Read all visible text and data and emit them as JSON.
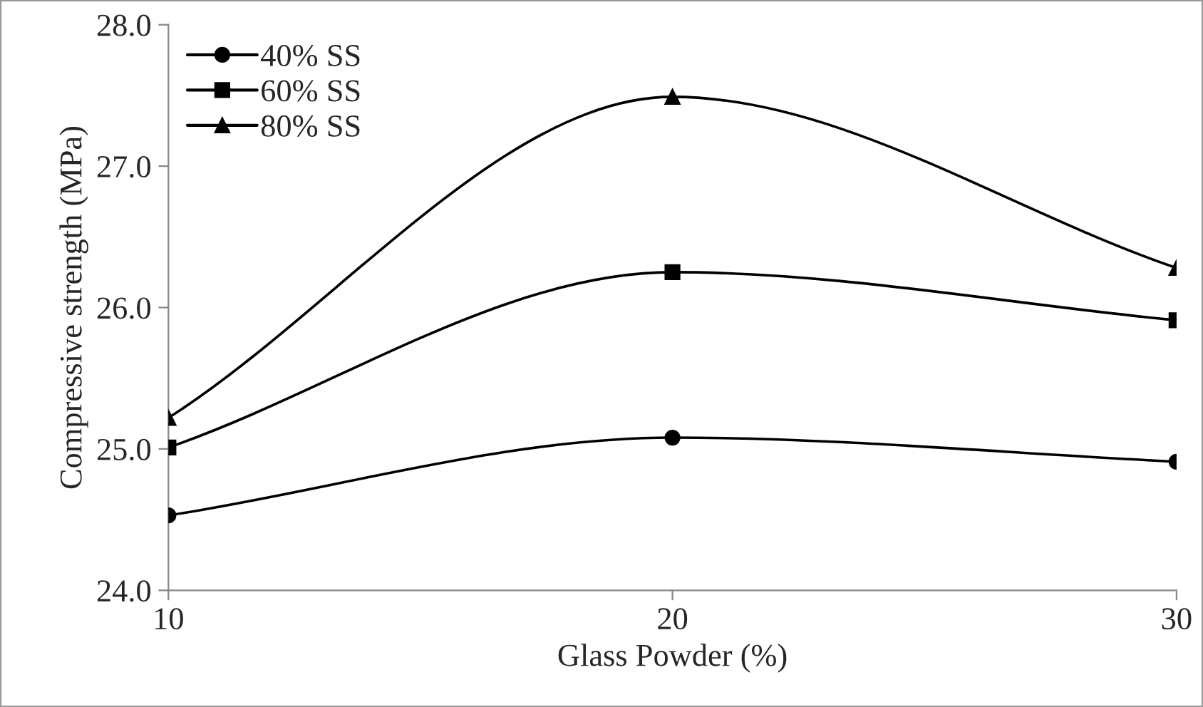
{
  "chart_data": {
    "type": "line",
    "xlabel": "Glass Powder (%)",
    "ylabel": "Compressive strength (MPa)",
    "x": [
      10,
      20,
      30
    ],
    "series": [
      {
        "name": "40% SS",
        "color": "#000000",
        "marker": "circle",
        "values": [
          24.53,
          25.08,
          24.91
        ]
      },
      {
        "name": "60% SS",
        "color": "#000000",
        "marker": "square",
        "values": [
          25.01,
          26.25,
          25.91
        ]
      },
      {
        "name": "80% SS",
        "color": "#000000",
        "marker": "triangle",
        "values": [
          25.22,
          27.49,
          26.28
        ]
      }
    ],
    "xlim": [
      10,
      30
    ],
    "xticks": [
      10,
      20,
      30
    ],
    "ylim": [
      24,
      28
    ],
    "yticks": [
      {
        "value": 24,
        "label": "24.0"
      },
      {
        "value": 25,
        "label": "25.0"
      },
      {
        "value": 26,
        "label": "26.0"
      },
      {
        "value": 27,
        "label": "27.0"
      },
      {
        "value": 28,
        "label": "28.0"
      }
    ],
    "grid": false,
    "legend": "top left",
    "line_style": "solid"
  }
}
